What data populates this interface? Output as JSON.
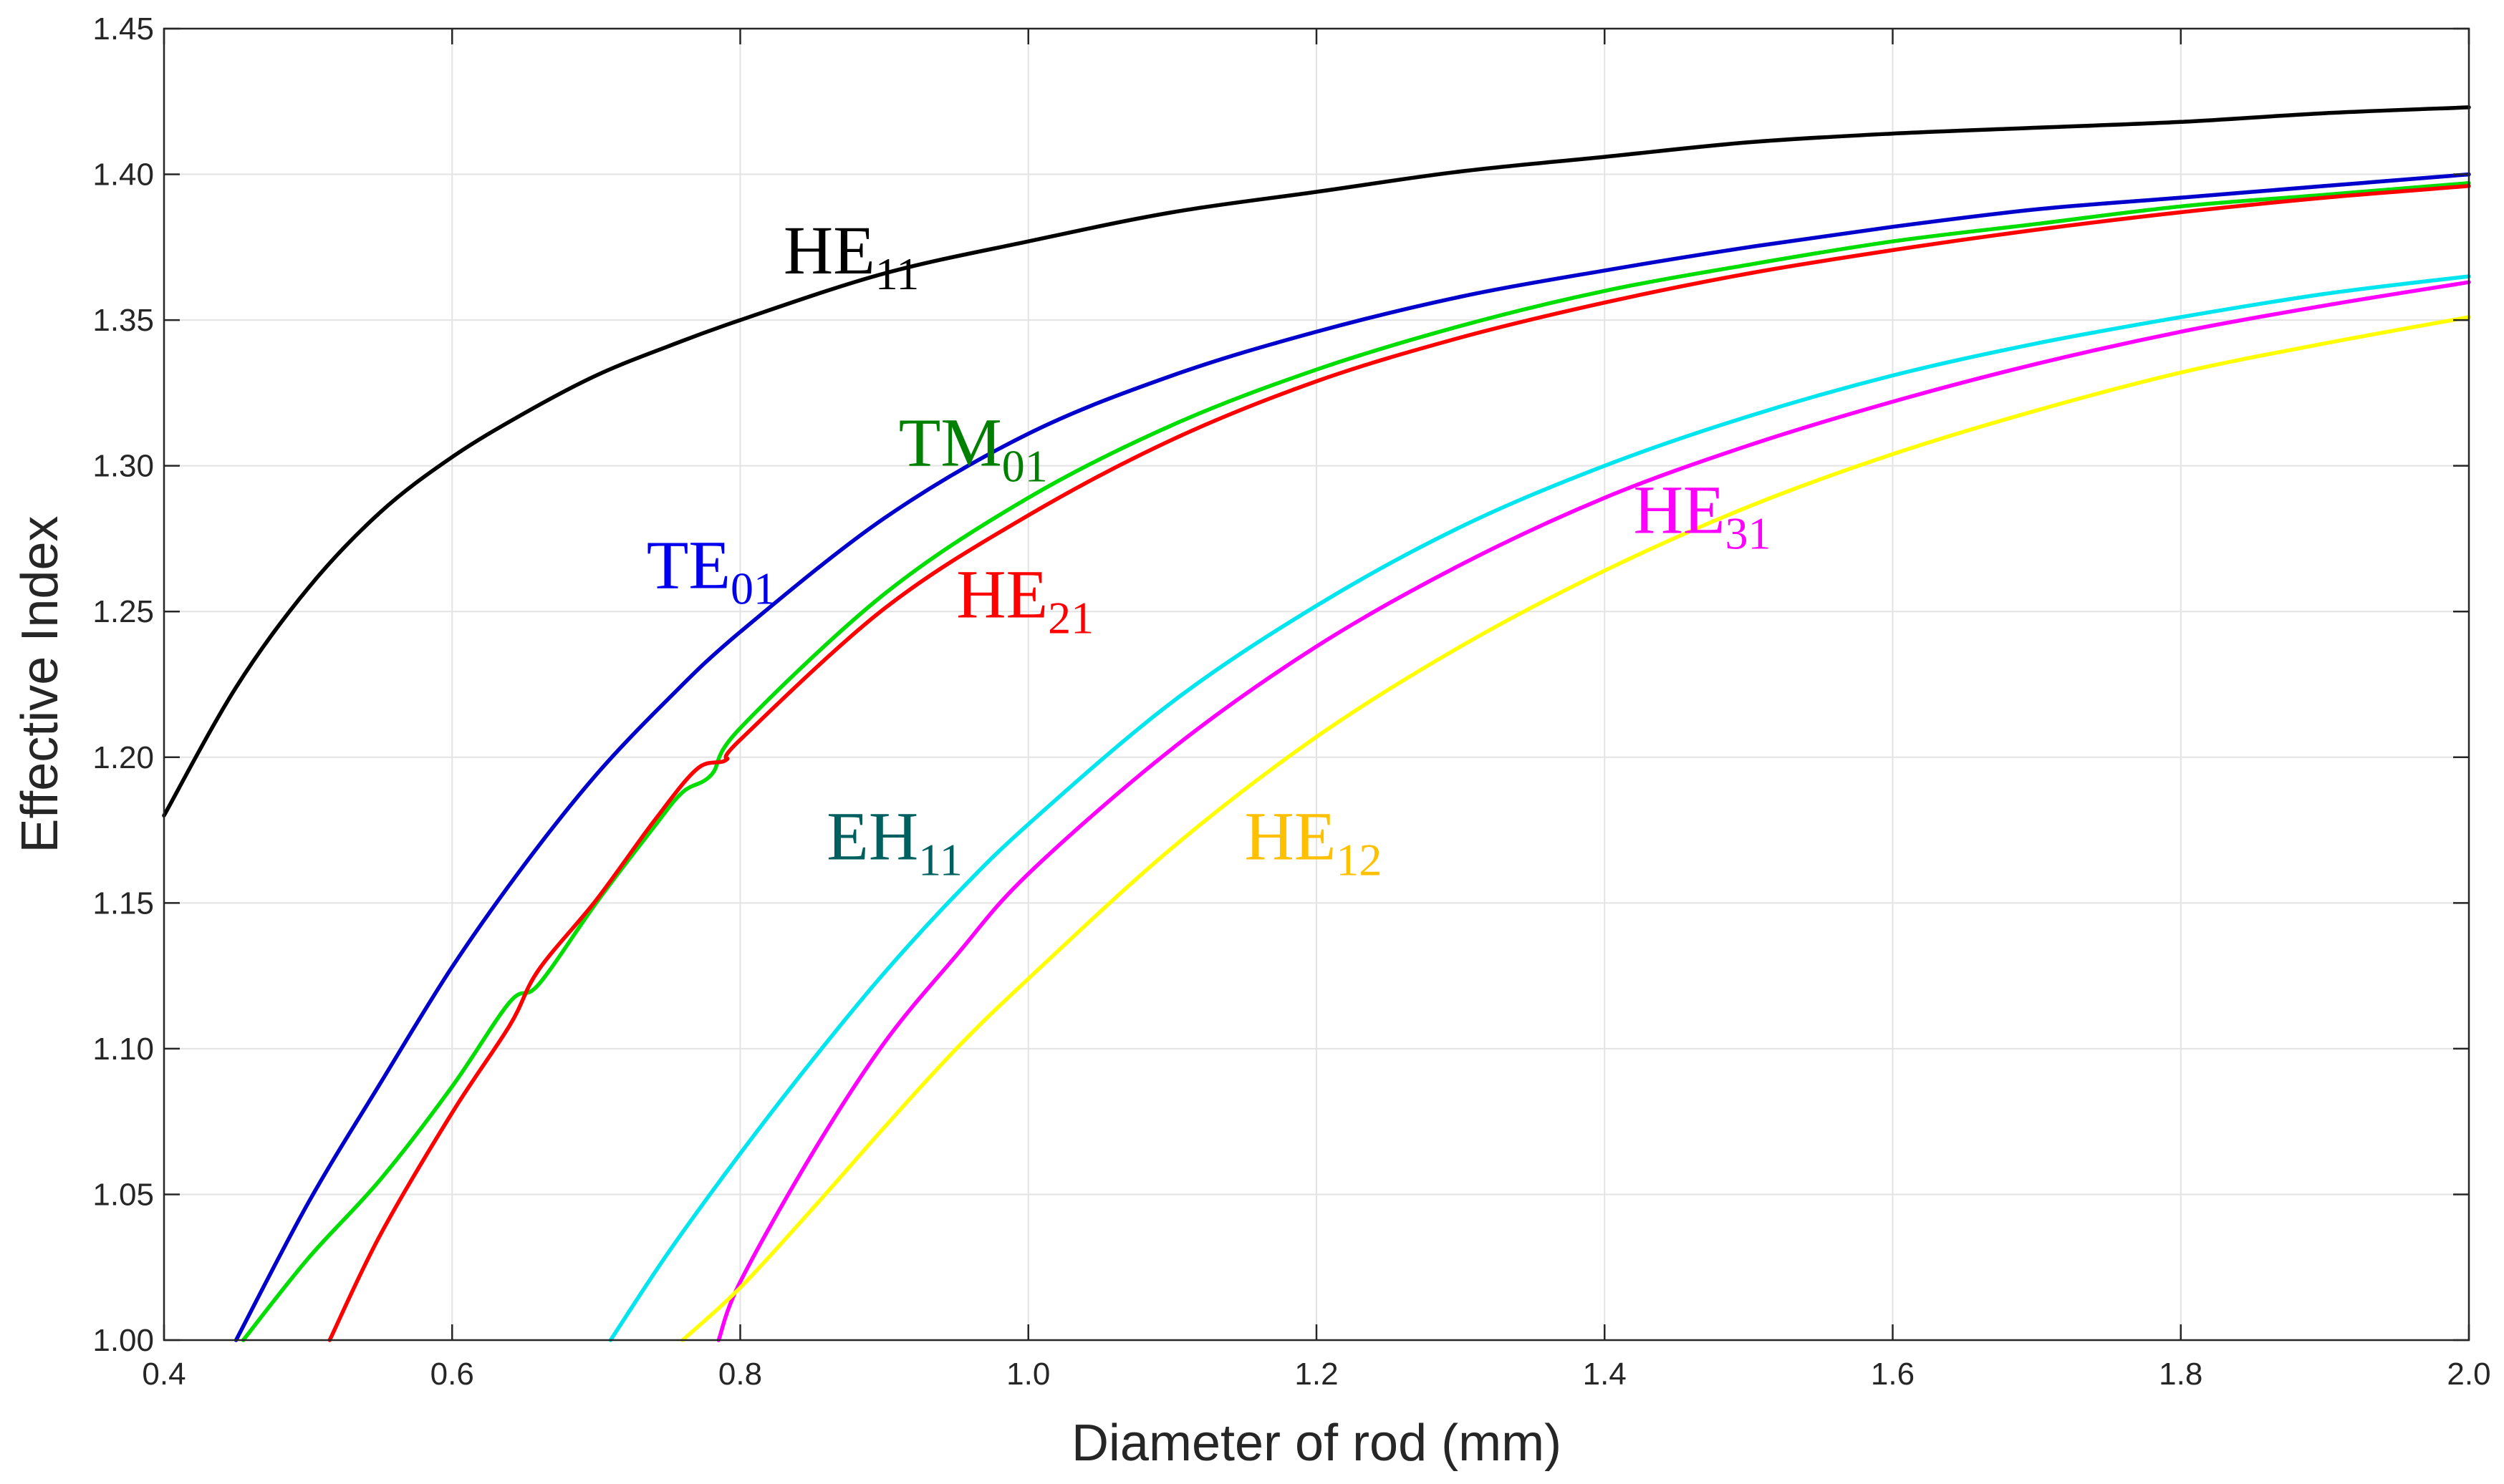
{
  "chart_data": {
    "type": "line",
    "title": "",
    "xlabel": "Diameter of rod (mm)",
    "ylabel": "Effective Index",
    "xlim": [
      0.4,
      2.0
    ],
    "ylim": [
      1.0,
      1.45
    ],
    "grid": true,
    "xticks": [
      0.4,
      0.6,
      0.8,
      1.0,
      1.2,
      1.4,
      1.6,
      1.8,
      2.0
    ],
    "xtick_labels": [
      "0.4",
      "0.6",
      "0.8",
      "1.0",
      "1.2",
      "1.4",
      "1.6",
      "1.8",
      "2.0"
    ],
    "yticks": [
      1.0,
      1.05,
      1.1,
      1.15,
      1.2,
      1.25,
      1.3,
      1.35,
      1.4,
      1.45
    ],
    "ytick_labels": [
      "1.00",
      "1.05",
      "1.10",
      "1.15",
      "1.20",
      "1.25",
      "1.30",
      "1.35",
      "1.40",
      "1.45"
    ],
    "series": [
      {
        "name": "HE11",
        "color": "#000000",
        "x": [
          0.4,
          0.45,
          0.5,
          0.55,
          0.6,
          0.65,
          0.7,
          0.75,
          0.8,
          0.9,
          1.0,
          1.1,
          1.2,
          1.3,
          1.4,
          1.5,
          1.6,
          1.7,
          1.8,
          1.9,
          2.0
        ],
        "y": [
          1.18,
          1.224,
          1.258,
          1.284,
          1.303,
          1.318,
          1.331,
          1.341,
          1.35,
          1.366,
          1.377,
          1.387,
          1.394,
          1.401,
          1.406,
          1.411,
          1.414,
          1.416,
          1.418,
          1.421,
          1.423
        ]
      },
      {
        "name": "TE01",
        "color": "#0000CC",
        "x": [
          0.45,
          0.5,
          0.55,
          0.6,
          0.65,
          0.7,
          0.75,
          0.8,
          0.9,
          1.0,
          1.1,
          1.2,
          1.3,
          1.4,
          1.5,
          1.6,
          1.7,
          1.8,
          1.9,
          2.0
        ],
        "y": [
          1.0,
          1.047,
          1.088,
          1.128,
          1.163,
          1.194,
          1.22,
          1.243,
          1.282,
          1.311,
          1.331,
          1.346,
          1.358,
          1.367,
          1.375,
          1.382,
          1.388,
          1.392,
          1.396,
          1.4
        ]
      },
      {
        "name": "TM01",
        "color": "#00DD00",
        "x": [
          0.455,
          0.5,
          0.55,
          0.6,
          0.64,
          0.66,
          0.7,
          0.74,
          0.76,
          0.78,
          0.8,
          0.9,
          1.0,
          1.1,
          1.2,
          1.3,
          1.4,
          1.5,
          1.6,
          1.7,
          1.8,
          1.9,
          2.0
        ],
        "y": [
          1.0,
          1.028,
          1.055,
          1.087,
          1.116,
          1.122,
          1.15,
          1.176,
          1.188,
          1.194,
          1.21,
          1.256,
          1.289,
          1.314,
          1.333,
          1.348,
          1.36,
          1.369,
          1.377,
          1.383,
          1.389,
          1.393,
          1.397
        ]
      },
      {
        "name": "HE21",
        "color": "#FF0000",
        "x": [
          0.515,
          0.55,
          0.6,
          0.64,
          0.66,
          0.7,
          0.74,
          0.77,
          0.79,
          0.8,
          0.9,
          1.0,
          1.1,
          1.2,
          1.3,
          1.4,
          1.5,
          1.6,
          1.7,
          1.8,
          1.9,
          2.0
        ],
        "y": [
          1.0,
          1.036,
          1.078,
          1.108,
          1.127,
          1.151,
          1.178,
          1.196,
          1.199,
          1.206,
          1.251,
          1.283,
          1.309,
          1.329,
          1.344,
          1.356,
          1.366,
          1.374,
          1.381,
          1.387,
          1.392,
          1.396
        ]
      },
      {
        "name": "EH11",
        "color": "#00E5EE",
        "x": [
          0.71,
          0.75,
          0.8,
          0.85,
          0.9,
          0.95,
          1.0,
          1.1,
          1.2,
          1.3,
          1.4,
          1.5,
          1.6,
          1.7,
          1.8,
          1.9,
          2.0
        ],
        "y": [
          1.0,
          1.03,
          1.064,
          1.096,
          1.126,
          1.153,
          1.177,
          1.219,
          1.252,
          1.279,
          1.3,
          1.317,
          1.331,
          1.342,
          1.351,
          1.359,
          1.365
        ]
      },
      {
        "name": "HE31",
        "color": "#FF00FF",
        "x": [
          0.785,
          0.8,
          0.85,
          0.9,
          0.95,
          1.0,
          1.1,
          1.2,
          1.3,
          1.4,
          1.5,
          1.6,
          1.7,
          1.8,
          1.9,
          2.0
        ],
        "y": [
          1.0,
          1.02,
          1.064,
          1.102,
          1.132,
          1.16,
          1.203,
          1.238,
          1.266,
          1.289,
          1.307,
          1.322,
          1.335,
          1.346,
          1.355,
          1.363
        ]
      },
      {
        "name": "HE12",
        "color": "#FFFF00",
        "x": [
          0.76,
          0.8,
          0.85,
          0.9,
          0.95,
          1.0,
          1.1,
          1.2,
          1.3,
          1.4,
          1.5,
          1.6,
          1.7,
          1.8,
          1.9,
          2.0
        ],
        "y": [
          1.0,
          1.018,
          1.045,
          1.073,
          1.1,
          1.124,
          1.169,
          1.207,
          1.238,
          1.264,
          1.286,
          1.304,
          1.319,
          1.332,
          1.342,
          1.351
        ]
      }
    ],
    "annotations": [
      {
        "main": "HE",
        "sub": "11",
        "color": "#000000",
        "x": 0.83,
        "y": 1.366
      },
      {
        "main": "TE",
        "sub": "01",
        "color": "#0000EE",
        "x": 0.735,
        "y": 1.258
      },
      {
        "main": "TM",
        "sub": "01",
        "color": "#008000",
        "x": 0.91,
        "y": 1.3
      },
      {
        "main": "HE",
        "sub": "21",
        "color": "#FF0000",
        "x": 0.95,
        "y": 1.248
      },
      {
        "main": "EH",
        "sub": "11",
        "color": "#006060",
        "x": 0.86,
        "y": 1.165
      },
      {
        "main": "HE",
        "sub": "31",
        "color": "#FF00FF",
        "x": 1.42,
        "y": 1.277
      },
      {
        "main": "HE",
        "sub": "12",
        "color": "#FFC000",
        "x": 1.15,
        "y": 1.165
      }
    ]
  }
}
